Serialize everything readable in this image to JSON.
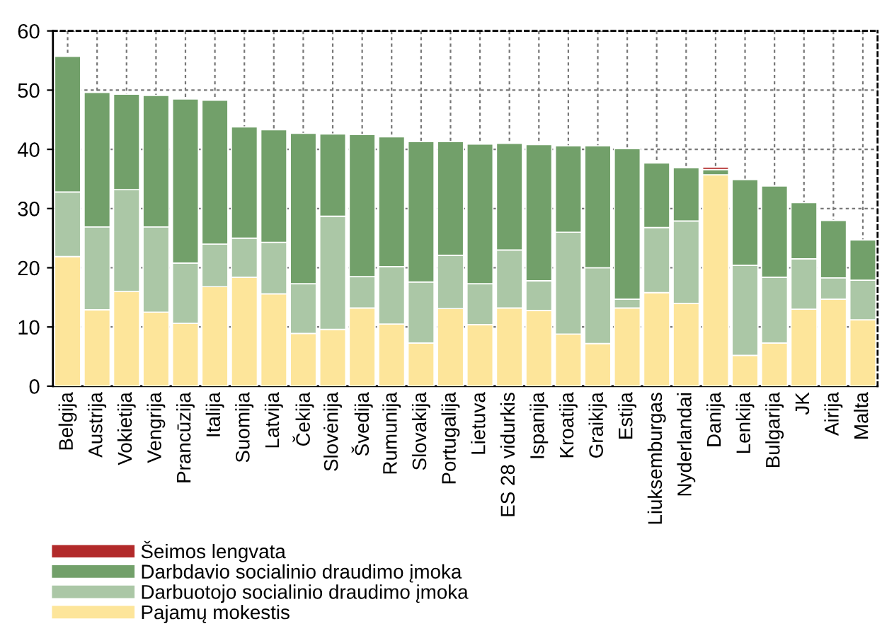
{
  "chart_data": {
    "type": "bar",
    "stacked": true,
    "categories": [
      "Belgija",
      "Austrija",
      "Vokietija",
      "Vengrija",
      "Prancūzija",
      "Italija",
      "Suomija",
      "Latvija",
      "Čekija",
      "Slovėnija",
      "Švedija",
      "Rumunija",
      "Slovakija",
      "Portugalija",
      "Lietuva",
      "ES 28 vidurkis",
      "Ispanija",
      "Kroatija",
      "Graikija",
      "Estija",
      "Liuksemburgas",
      "Nyderlandai",
      "Danija",
      "Lenkija",
      "Bulgarija",
      "JK",
      "Airija",
      "Malta"
    ],
    "series": [
      {
        "name": "Pajamų mokestis",
        "color": "#fde59a",
        "values": [
          21.9,
          12.9,
          16.0,
          12.5,
          10.6,
          16.8,
          18.4,
          15.6,
          8.9,
          9.6,
          13.2,
          10.5,
          7.3,
          13.1,
          10.4,
          13.2,
          12.8,
          8.8,
          7.2,
          13.2,
          15.8,
          14.0,
          35.7,
          5.2,
          7.3,
          13.0,
          14.7,
          11.2
        ]
      },
      {
        "name": "Darbuotojo socialinio draudimo įmoka",
        "color": "#abc7a6",
        "values": [
          10.9,
          14.0,
          17.2,
          14.4,
          10.2,
          7.2,
          6.6,
          8.7,
          8.4,
          19.1,
          5.3,
          9.7,
          10.3,
          9.0,
          6.9,
          9.8,
          5.0,
          17.2,
          12.8,
          1.5,
          11.0,
          13.9,
          null,
          15.2,
          11.1,
          8.5,
          3.6,
          6.7
        ]
      },
      {
        "name": "Darbdavio socialinio draudimo įmoka",
        "color": "#72a06a",
        "values": [
          22.9,
          22.7,
          16.1,
          22.2,
          27.7,
          24.3,
          18.8,
          19.0,
          25.4,
          13.9,
          24.0,
          21.9,
          23.7,
          19.2,
          23.6,
          18.0,
          23.0,
          14.6,
          20.6,
          25.4,
          10.9,
          9.0,
          0.9,
          14.5,
          15.4,
          9.5,
          9.7,
          6.8
        ]
      },
      {
        "name": "Šeimos lengvata",
        "color": "#b22a2a",
        "values": [
          null,
          null,
          null,
          null,
          null,
          null,
          null,
          null,
          null,
          null,
          null,
          null,
          null,
          null,
          null,
          null,
          null,
          null,
          null,
          null,
          null,
          null,
          0.4,
          null,
          null,
          null,
          null,
          null
        ]
      }
    ],
    "ylim": [
      0,
      60
    ],
    "yticks": [
      0,
      10,
      20,
      30,
      40,
      50,
      60
    ],
    "grid": true,
    "legend": "bottom left"
  }
}
